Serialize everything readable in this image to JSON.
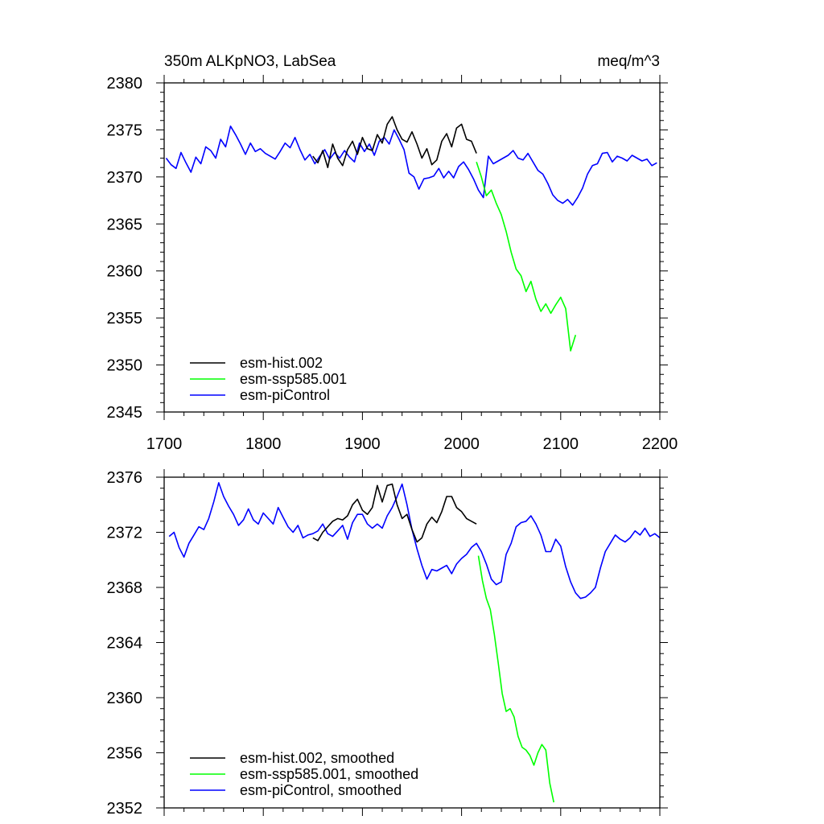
{
  "colors": {
    "hist": "#000000",
    "ssp": "#00ff00",
    "pi": "#0000ff"
  },
  "chart_data": [
    {
      "type": "line",
      "title_left": "350m ALKpNO3, LabSea",
      "title_right": "meq/m^3",
      "xlim": [
        1700,
        2200
      ],
      "ylim": [
        2345,
        2380
      ],
      "xticks": [
        1700,
        1800,
        1900,
        2000,
        2100,
        2200
      ],
      "yticks": [
        2345,
        2350,
        2355,
        2360,
        2365,
        2370,
        2375,
        2380
      ],
      "show_xtick_labels": true,
      "legend_position": "bottom-left",
      "series": [
        {
          "name": "esm-hist.002",
          "color": "#000000",
          "x_start": 1850,
          "x_step": 5,
          "values": [
            2372.2,
            2371.5,
            2372.8,
            2371.0,
            2373.5,
            2372.0,
            2371.2,
            2372.9,
            2373.8,
            2372.4,
            2374.2,
            2373.0,
            2372.8,
            2374.5,
            2373.6,
            2375.6,
            2376.4,
            2375.0,
            2374.0,
            2373.7,
            2374.8,
            2373.5,
            2372.0,
            2373.0,
            2371.3,
            2371.8,
            2373.8,
            2374.6,
            2373.2,
            2375.2,
            2375.6,
            2374.0,
            2373.8,
            2372.5
          ]
        },
        {
          "name": "esm-ssp585.001",
          "color": "#00ff00",
          "x_start": 2015,
          "x_step": 5,
          "values": [
            2371.6,
            2370.0,
            2368.0,
            2368.6,
            2367.2,
            2366.0,
            2364.2,
            2362.0,
            2360.2,
            2359.5,
            2357.8,
            2358.9,
            2357.0,
            2355.7,
            2356.5,
            2355.5,
            2356.4,
            2357.2,
            2356.0,
            2351.5,
            2353.2
          ]
        },
        {
          "name": "esm-piControl",
          "color": "#0000ff",
          "x_start": 1702,
          "x_step": 5,
          "values": [
            2372.0,
            2371.3,
            2370.9,
            2372.6,
            2371.5,
            2370.5,
            2372.1,
            2371.4,
            2373.2,
            2372.8,
            2372.0,
            2374.0,
            2373.2,
            2375.4,
            2374.5,
            2373.5,
            2372.4,
            2373.6,
            2372.7,
            2373.0,
            2372.5,
            2372.2,
            2371.9,
            2372.7,
            2373.6,
            2373.1,
            2374.2,
            2372.9,
            2371.8,
            2372.4,
            2371.4,
            2372.2,
            2372.9,
            2371.9,
            2372.6,
            2372.0,
            2372.8,
            2372.1,
            2371.6,
            2373.6,
            2372.7,
            2373.5,
            2372.3,
            2373.8,
            2374.2,
            2373.5,
            2375.0,
            2374.0,
            2372.9,
            2370.4,
            2370.0,
            2368.7,
            2369.8,
            2369.9,
            2370.1,
            2370.9,
            2369.9,
            2370.6,
            2369.9,
            2371.1,
            2371.6,
            2370.8,
            2369.8,
            2368.6,
            2367.8,
            2372.2,
            2371.4,
            2371.7,
            2372.0,
            2372.3,
            2372.8,
            2372.0,
            2371.8,
            2372.5,
            2371.6,
            2370.7,
            2370.3,
            2369.3,
            2368.1,
            2367.5,
            2367.2,
            2367.6,
            2367.0,
            2367.8,
            2368.8,
            2370.3,
            2371.2,
            2371.4,
            2372.5,
            2372.6,
            2371.6,
            2372.2,
            2372.0,
            2371.7,
            2372.3,
            2372.0,
            2371.7,
            2371.9,
            2371.2,
            2371.5
          ]
        }
      ]
    },
    {
      "type": "line",
      "xlim": [
        1700,
        2200
      ],
      "ylim": [
        2352,
        2376
      ],
      "xticks": [
        1700,
        1800,
        1900,
        2000,
        2100,
        2200
      ],
      "yticks": [
        2352,
        2356,
        2360,
        2364,
        2368,
        2372,
        2376
      ],
      "show_xtick_labels": false,
      "legend_position": "bottom-left",
      "series": [
        {
          "name": "esm-hist.002, smoothed",
          "color": "#000000",
          "x_start": 1850,
          "x_step": 5,
          "values": [
            2371.6,
            2371.4,
            2372.0,
            2372.4,
            2372.8,
            2373.0,
            2372.9,
            2373.2,
            2374.0,
            2374.4,
            2373.6,
            2373.3,
            2373.8,
            2375.4,
            2374.2,
            2375.4,
            2375.5,
            2374.0,
            2373.0,
            2373.3,
            2372.2,
            2371.3,
            2371.6,
            2372.6,
            2373.1,
            2372.7,
            2373.5,
            2374.6,
            2374.6,
            2373.8,
            2373.5,
            2373.0,
            2372.8,
            2372.6
          ]
        },
        {
          "name": "esm-ssp585.001, smoothed",
          "color": "#00ff00",
          "x_start": 2017,
          "x_step": 4,
          "values": [
            2370.3,
            2368.5,
            2367.2,
            2366.4,
            2364.6,
            2362.5,
            2360.3,
            2359.0,
            2359.2,
            2358.6,
            2357.2,
            2356.4,
            2356.2,
            2355.8,
            2355.1,
            2356.0,
            2356.6,
            2356.2,
            2353.8,
            2352.4
          ]
        },
        {
          "name": "esm-piControl, smoothed",
          "color": "#0000ff",
          "x_start": 1705,
          "x_step": 5,
          "values": [
            2371.7,
            2372.0,
            2370.9,
            2370.2,
            2371.2,
            2371.8,
            2372.4,
            2372.2,
            2373.0,
            2374.2,
            2375.6,
            2374.6,
            2373.9,
            2373.3,
            2372.5,
            2372.9,
            2373.7,
            2372.9,
            2372.6,
            2373.4,
            2373.0,
            2372.6,
            2373.8,
            2373.1,
            2372.4,
            2372.0,
            2372.5,
            2371.6,
            2371.8,
            2371.9,
            2372.1,
            2372.6,
            2371.9,
            2371.7,
            2372.1,
            2372.5,
            2371.5,
            2372.7,
            2373.3,
            2373.3,
            2372.6,
            2372.3,
            2372.6,
            2372.3,
            2373.2,
            2373.8,
            2374.6,
            2375.5,
            2374.0,
            2372.2,
            2370.8,
            2369.6,
            2368.6,
            2369.3,
            2369.2,
            2369.4,
            2369.6,
            2369.0,
            2369.7,
            2370.1,
            2370.4,
            2370.9,
            2371.2,
            2370.6,
            2369.7,
            2368.6,
            2368.2,
            2368.4,
            2370.4,
            2371.2,
            2372.4,
            2372.7,
            2372.8,
            2373.2,
            2372.6,
            2371.8,
            2370.6,
            2370.6,
            2371.5,
            2371.0,
            2369.5,
            2368.4,
            2367.6,
            2367.2,
            2367.3,
            2367.6,
            2368.0,
            2369.4,
            2370.6,
            2371.2,
            2371.8,
            2371.5,
            2371.3,
            2371.6,
            2372.1,
            2371.8,
            2372.3,
            2371.7,
            2371.9,
            2371.6
          ]
        }
      ]
    }
  ]
}
